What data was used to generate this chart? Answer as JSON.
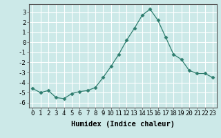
{
  "x": [
    0,
    1,
    2,
    3,
    4,
    5,
    6,
    7,
    8,
    9,
    10,
    11,
    12,
    13,
    14,
    15,
    16,
    17,
    18,
    19,
    20,
    21,
    22,
    23
  ],
  "y": [
    -4.6,
    -5.0,
    -4.8,
    -5.5,
    -5.6,
    -5.1,
    -4.9,
    -4.8,
    -4.5,
    -3.5,
    -2.4,
    -1.2,
    0.2,
    1.4,
    2.7,
    3.3,
    2.2,
    0.5,
    -1.2,
    -1.7,
    -2.8,
    -3.1,
    -3.1,
    -3.5
  ],
  "line_color": "#2e7d6e",
  "marker": "D",
  "marker_size": 2.5,
  "bg_color": "#cce9e8",
  "grid_color": "#ffffff",
  "xlabel": "Humidex (Indice chaleur)",
  "ylim": [
    -6.5,
    3.8
  ],
  "xlim": [
    -0.5,
    23.5
  ],
  "yticks": [
    -6,
    -5,
    -4,
    -3,
    -2,
    -1,
    0,
    1,
    2,
    3
  ],
  "xticks": [
    0,
    1,
    2,
    3,
    4,
    5,
    6,
    7,
    8,
    9,
    10,
    11,
    12,
    13,
    14,
    15,
    16,
    17,
    18,
    19,
    20,
    21,
    22,
    23
  ],
  "tick_label_fontsize": 6.5,
  "xlabel_fontsize": 7.5
}
